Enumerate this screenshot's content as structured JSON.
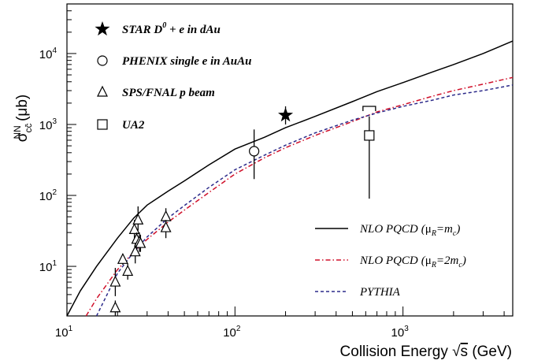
{
  "chart_data": {
    "type": "scatter",
    "x_scale": "log",
    "y_scale": "log",
    "xlim": [
      10,
      4500
    ],
    "ylim": [
      2,
      50000
    ],
    "grid": false,
    "x_ticks": [
      {
        "value": 10,
        "label": "10"
      },
      {
        "value": 100,
        "label": "10"
      },
      {
        "value": 1000,
        "label": "10"
      }
    ],
    "x_tick_exponents": [
      "1",
      "2",
      "3"
    ],
    "y_ticks": [
      {
        "value": 10,
        "label": "10"
      },
      {
        "value": 100,
        "label": "10"
      },
      {
        "value": 1000,
        "label": "10"
      },
      {
        "value": 10000,
        "label": "10"
      }
    ],
    "y_tick_exponents": [
      "1",
      "2",
      "3",
      "4"
    ],
    "xlabel": "Collision Energy √s (GeV)",
    "xlabel_text": "Collision Energy ",
    "xlabel_sqrt_symbol": "√",
    "xlabel_s": "s",
    "xlabel_unit": " (GeV)",
    "ylabel_main": "σ",
    "ylabel_sub": "cc̄",
    "ylabel_sup": "NN",
    "ylabel_unit": " (μb)",
    "legend_position": "top-left",
    "series": [
      {
        "name": "STAR D⁰ + e in dAu",
        "name_parts": [
          "STAR D",
          "0",
          " + e in dAu"
        ],
        "marker": "star",
        "points": [
          {
            "x": 200,
            "y": 1350,
            "ylo": 1000,
            "yhi": 1800
          }
        ]
      },
      {
        "name": "PHENIX single e in AuAu",
        "marker": "circle",
        "points": [
          {
            "x": 130,
            "y": 420,
            "ylo": 170,
            "yhi": 850
          }
        ]
      },
      {
        "name": "SPS/FNAL p beam",
        "marker": "triangle",
        "points": [
          {
            "x": 19.4,
            "y": 2.6,
            "ylo": 2.0,
            "yhi": 3.3
          },
          {
            "x": 19.4,
            "y": 6.0,
            "ylo": 3.8,
            "yhi": 9.5
          },
          {
            "x": 21.5,
            "y": 12.5,
            "ylo": 10.5,
            "yhi": 15.0
          },
          {
            "x": 23.0,
            "y": 8.5,
            "ylo": 6.5,
            "yhi": 11.0
          },
          {
            "x": 25.2,
            "y": 33,
            "ylo": 24,
            "yhi": 45
          },
          {
            "x": 25.5,
            "y": 16,
            "ylo": 11,
            "yhi": 22
          },
          {
            "x": 26.0,
            "y": 24,
            "ylo": 17,
            "yhi": 30
          },
          {
            "x": 26.5,
            "y": 45,
            "ylo": 32,
            "yhi": 70
          },
          {
            "x": 27.0,
            "y": 22,
            "ylo": 16,
            "yhi": 30
          },
          {
            "x": 27.4,
            "y": 21,
            "ylo": 16,
            "yhi": 28
          },
          {
            "x": 38.8,
            "y": 50,
            "ylo": 38,
            "yhi": 66
          },
          {
            "x": 38.8,
            "y": 35,
            "ylo": 25,
            "yhi": 45
          }
        ]
      },
      {
        "name": "UA2",
        "marker": "square",
        "points": [
          {
            "x": 630,
            "y": 700,
            "ylo": 90,
            "yhi": 1300,
            "bracket": 1800
          }
        ]
      }
    ],
    "curves": [
      {
        "name": "NLO PQCD (μR=mc)",
        "label_prefix": "NLO PQCD",
        "label_paren_open": "(",
        "label_mu": "μ",
        "label_mu_sub": "R",
        "label_eq": "=m",
        "label_m_sub": "c",
        "label_paren_close": ")",
        "style": "solid",
        "color": "#000000",
        "x": [
          10,
          12,
          15,
          20,
          25,
          30,
          40,
          50,
          70,
          100,
          150,
          200,
          300,
          500,
          700,
          1000,
          1500,
          2000,
          3000,
          4500
        ],
        "y": [
          2,
          4.5,
          10,
          25,
          48,
          73,
          115,
          160,
          270,
          450,
          660,
          900,
          1300,
          2100,
          2900,
          3900,
          5500,
          7000,
          10000,
          15000
        ]
      },
      {
        "name": "NLO PQCD (μR=2mc)",
        "label_prefix": "NLO PQCD",
        "label_paren_open": "(",
        "label_mu": "μ",
        "label_mu_sub": "R",
        "label_eq": "=2m",
        "label_m_sub": "c",
        "label_paren_close": ")",
        "style": "dash-dot",
        "color": "#d0102a",
        "x": [
          13,
          15,
          20,
          25,
          30,
          40,
          50,
          70,
          100,
          150,
          200,
          300,
          500,
          700,
          1000,
          1500,
          2000,
          3000,
          4500
        ],
        "y": [
          2,
          3.5,
          9,
          16,
          24,
          42,
          62,
          110,
          200,
          340,
          470,
          700,
          1100,
          1500,
          1900,
          2500,
          3000,
          3700,
          4600
        ]
      },
      {
        "name": "PYTHIA",
        "label_prefix": "PYTHIA",
        "style": "dashed",
        "color": "#2c2a8a",
        "x": [
          15,
          20,
          25,
          30,
          40,
          50,
          70,
          100,
          150,
          200,
          300,
          500,
          700,
          1000,
          1500,
          2000,
          3000,
          4500
        ],
        "y": [
          2,
          8,
          16,
          26,
          48,
          72,
          130,
          230,
          370,
          510,
          760,
          1150,
          1450,
          1800,
          2200,
          2600,
          3000,
          3600
        ]
      }
    ]
  }
}
